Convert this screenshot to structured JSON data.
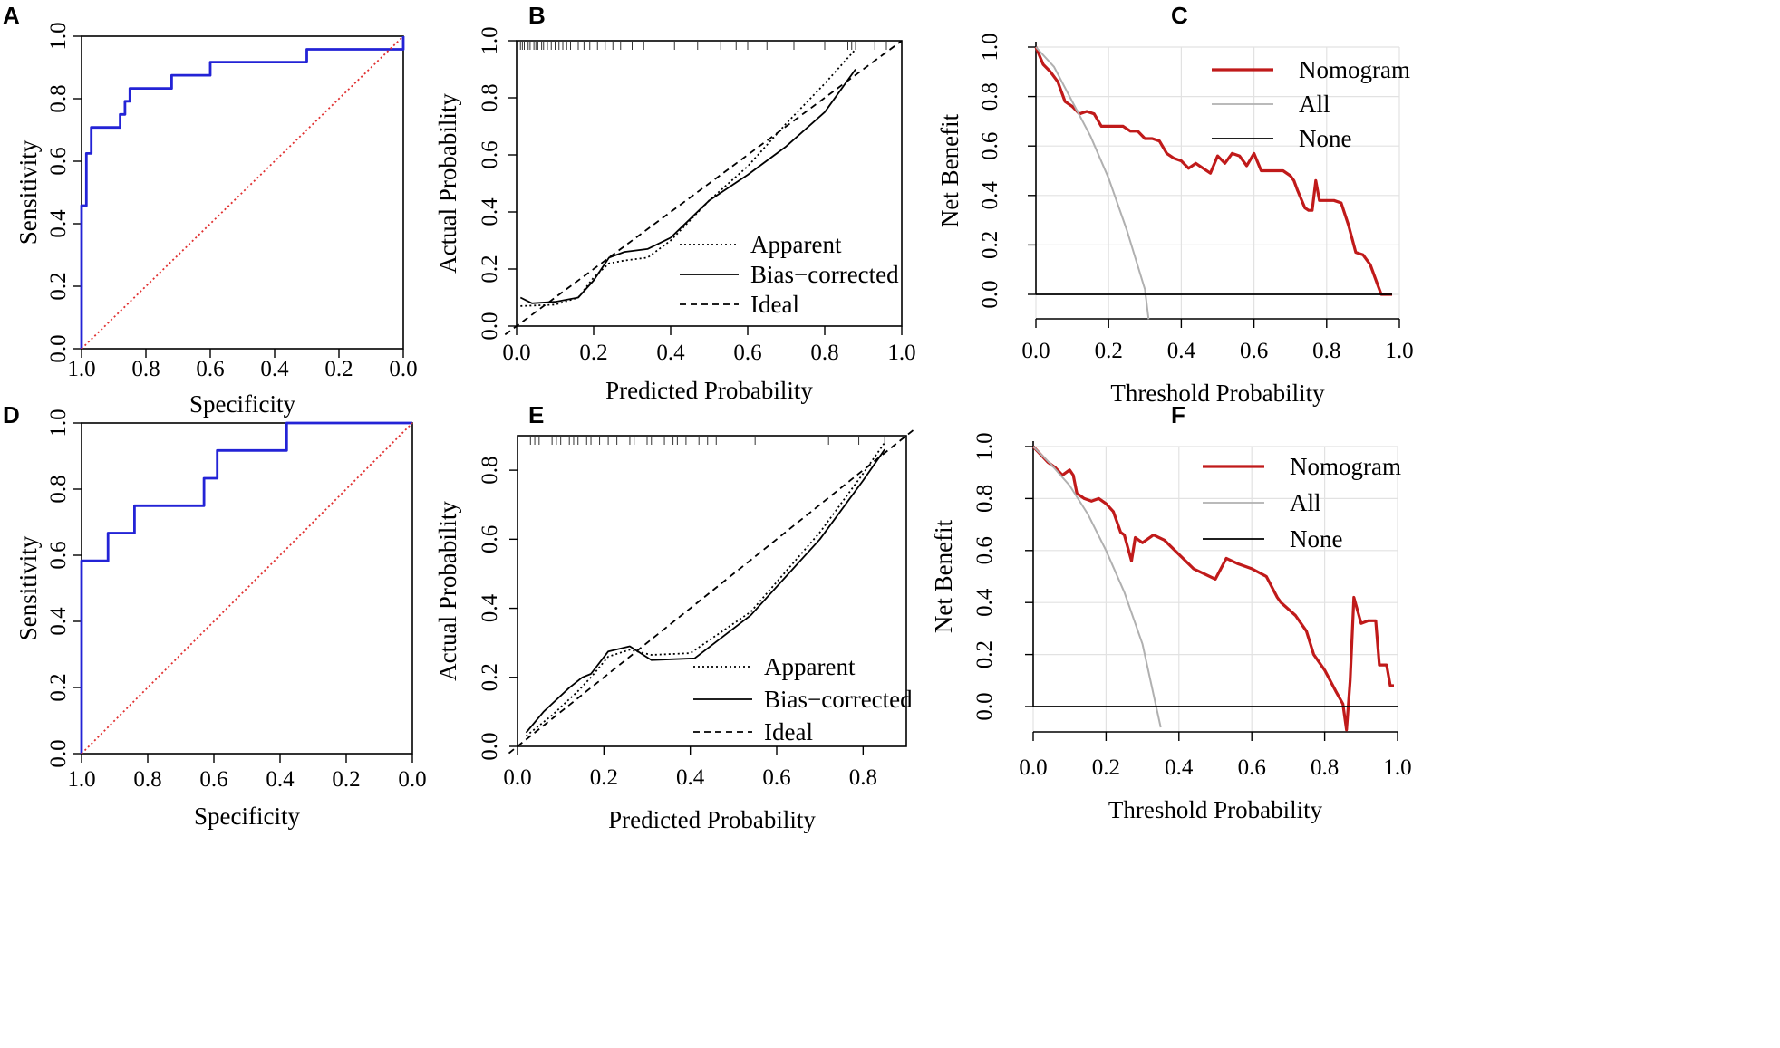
{
  "chart_data": [
    {
      "panel": "A",
      "type": "line",
      "kind": "roc",
      "xlabel": "Specificity",
      "ylabel": "Sensitivity",
      "xlim": [
        1.0,
        0.0
      ],
      "ylim": [
        0.0,
        1.0
      ],
      "xticks": [
        "1.0",
        "0.8",
        "0.6",
        "0.4",
        "0.2",
        "0.0"
      ],
      "yticks": [
        "0.0",
        "0.2",
        "0.4",
        "0.6",
        "0.8",
        "1.0"
      ],
      "series": [
        {
          "name": "ROC",
          "color": "#2323d6",
          "style": "solid",
          "specificity": [
            1.0,
            1.0,
            0.985,
            0.985,
            0.97,
            0.97,
            0.955,
            0.955,
            0.88,
            0.88,
            0.865,
            0.865,
            0.85,
            0.85,
            0.72,
            0.72,
            0.6,
            0.6,
            0.3,
            0.3,
            0.0,
            0.0
          ],
          "sensitivity": [
            0.0,
            0.458,
            0.458,
            0.625,
            0.625,
            0.708,
            0.708,
            0.708,
            0.708,
            0.75,
            0.75,
            0.792,
            0.792,
            0.833,
            0.833,
            0.875,
            0.875,
            0.917,
            0.917,
            0.958,
            0.958,
            1.0
          ]
        },
        {
          "name": "Reference",
          "color": "#e03030",
          "style": "dotted",
          "specificity": [
            1.0,
            0.0
          ],
          "sensitivity": [
            0.0,
            1.0
          ]
        }
      ]
    },
    {
      "panel": "B",
      "type": "line",
      "kind": "calibration",
      "xlabel": "Predicted Probability",
      "ylabel": "Actual Probability",
      "xlim": [
        0.0,
        1.0
      ],
      "ylim": [
        0.0,
        1.0
      ],
      "xticks": [
        "0.0",
        "0.2",
        "0.4",
        "0.6",
        "0.8",
        "1.0"
      ],
      "yticks": [
        "0.0",
        "0.2",
        "0.4",
        "0.6",
        "0.8",
        "1.0"
      ],
      "legend": [
        "Apparent",
        "Bias−corrected",
        "Ideal"
      ],
      "rug": [
        0.01,
        0.015,
        0.02,
        0.03,
        0.035,
        0.045,
        0.05,
        0.055,
        0.065,
        0.07,
        0.08,
        0.09,
        0.1,
        0.11,
        0.12,
        0.13,
        0.14,
        0.16,
        0.175,
        0.19,
        0.21,
        0.23,
        0.25,
        0.27,
        0.3,
        0.33,
        0.41,
        0.47,
        0.53,
        0.57,
        0.6,
        0.65,
        0.72,
        0.8,
        0.86,
        0.87,
        0.88,
        0.93,
        0.96
      ],
      "series": [
        {
          "name": "Apparent",
          "style": "dotted",
          "x": [
            0.01,
            0.1,
            0.16,
            0.2,
            0.24,
            0.28,
            0.34,
            0.4,
            0.5,
            0.6,
            0.7,
            0.8,
            0.88
          ],
          "y": [
            0.07,
            0.075,
            0.1,
            0.17,
            0.22,
            0.23,
            0.24,
            0.3,
            0.44,
            0.56,
            0.71,
            0.85,
            0.97
          ]
        },
        {
          "name": "Bias−corrected",
          "style": "solid",
          "x": [
            0.01,
            0.04,
            0.1,
            0.16,
            0.2,
            0.24,
            0.28,
            0.34,
            0.4,
            0.5,
            0.6,
            0.7,
            0.8,
            0.88
          ],
          "y": [
            0.1,
            0.08,
            0.085,
            0.1,
            0.16,
            0.24,
            0.26,
            0.27,
            0.31,
            0.44,
            0.53,
            0.63,
            0.75,
            0.9
          ]
        },
        {
          "name": "Ideal",
          "style": "dashed",
          "x": [
            -0.03,
            1.0
          ],
          "y": [
            -0.03,
            1.0
          ]
        }
      ]
    },
    {
      "panel": "C",
      "type": "line",
      "kind": "decision-curve",
      "xlabel": "Threshold Probability",
      "ylabel": "Net Benefit",
      "xlim": [
        0.0,
        1.0
      ],
      "ylim": [
        0.0,
        1.0
      ],
      "xticks": [
        "0.0",
        "0.2",
        "0.4",
        "0.6",
        "0.8",
        "1.0"
      ],
      "yticks": [
        "0.0",
        "0.2",
        "0.4",
        "0.6",
        "0.8",
        "1.0"
      ],
      "legend": [
        "Nomogram",
        "All",
        "None"
      ],
      "series": [
        {
          "name": "Nomogram",
          "color": "#c01a1a",
          "x": [
            0.0,
            0.02,
            0.04,
            0.06,
            0.08,
            0.1,
            0.12,
            0.14,
            0.16,
            0.18,
            0.2,
            0.22,
            0.24,
            0.26,
            0.28,
            0.3,
            0.32,
            0.34,
            0.36,
            0.38,
            0.4,
            0.42,
            0.44,
            0.46,
            0.48,
            0.5,
            0.52,
            0.54,
            0.56,
            0.58,
            0.6,
            0.62,
            0.64,
            0.66,
            0.68,
            0.7,
            0.71,
            0.72,
            0.74,
            0.75,
            0.76,
            0.77,
            0.78,
            0.8,
            0.82,
            0.84,
            0.86,
            0.88,
            0.9,
            0.92,
            0.94,
            0.95,
            0.98
          ],
          "y": [
            1.0,
            0.93,
            0.9,
            0.86,
            0.78,
            0.76,
            0.73,
            0.74,
            0.73,
            0.68,
            0.68,
            0.68,
            0.68,
            0.66,
            0.66,
            0.63,
            0.63,
            0.62,
            0.57,
            0.55,
            0.54,
            0.51,
            0.53,
            0.51,
            0.49,
            0.56,
            0.53,
            0.57,
            0.56,
            0.52,
            0.57,
            0.5,
            0.5,
            0.5,
            0.5,
            0.48,
            0.46,
            0.42,
            0.35,
            0.34,
            0.34,
            0.46,
            0.38,
            0.38,
            0.38,
            0.37,
            0.28,
            0.17,
            0.16,
            0.12,
            0.04,
            0.0,
            0.0
          ]
        },
        {
          "name": "All",
          "color": "#b0b0b0",
          "x": [
            0.0,
            0.05,
            0.1,
            0.15,
            0.2,
            0.25,
            0.3,
            0.31
          ],
          "y": [
            1.0,
            0.92,
            0.78,
            0.64,
            0.47,
            0.26,
            0.02,
            -0.1
          ]
        },
        {
          "name": "None",
          "color": "#000000",
          "x": [
            0.0,
            0.98
          ],
          "y": [
            0.0,
            0.0
          ]
        }
      ]
    },
    {
      "panel": "D",
      "type": "line",
      "kind": "roc",
      "xlabel": "Specificity",
      "ylabel": "Sensitivity",
      "xlim": [
        1.0,
        0.0
      ],
      "ylim": [
        0.0,
        1.0
      ],
      "xticks": [
        "1.0",
        "0.8",
        "0.6",
        "0.4",
        "0.2",
        "0.0"
      ],
      "yticks": [
        "0.0",
        "0.2",
        "0.4",
        "0.6",
        "0.8",
        "1.0"
      ],
      "series": [
        {
          "name": "ROC",
          "color": "#2323d6",
          "style": "solid",
          "specificity": [
            1.0,
            1.0,
            0.92,
            0.92,
            0.84,
            0.84,
            0.63,
            0.63,
            0.59,
            0.59,
            0.38,
            0.38,
            0.0
          ],
          "sensitivity": [
            0.0,
            0.583,
            0.583,
            0.667,
            0.667,
            0.75,
            0.75,
            0.833,
            0.833,
            0.917,
            0.917,
            1.0,
            1.0
          ]
        },
        {
          "name": "Reference",
          "color": "#e03030",
          "style": "dotted",
          "specificity": [
            1.0,
            0.0
          ],
          "sensitivity": [
            0.0,
            1.0
          ]
        }
      ]
    },
    {
      "panel": "E",
      "type": "line",
      "kind": "calibration",
      "xlabel": "Predicted Probability",
      "ylabel": "Actual Probability",
      "xlim": [
        0.0,
        0.9
      ],
      "ylim": [
        0.0,
        0.9
      ],
      "xticks": [
        "0.0",
        "0.2",
        "0.4",
        "0.6",
        "0.8"
      ],
      "yticks": [
        "0.0",
        "0.2",
        "0.4",
        "0.6",
        "0.8"
      ],
      "legend": [
        "Apparent",
        "Bias−corrected",
        "Ideal"
      ],
      "rug": [
        0.03,
        0.04,
        0.05,
        0.08,
        0.09,
        0.1,
        0.12,
        0.13,
        0.14,
        0.16,
        0.17,
        0.19,
        0.21,
        0.23,
        0.26,
        0.27,
        0.3,
        0.31,
        0.34,
        0.36,
        0.37,
        0.39,
        0.42,
        0.44,
        0.46,
        0.55,
        0.72,
        0.79,
        0.85
      ],
      "series": [
        {
          "name": "Apparent",
          "style": "dotted",
          "x": [
            0.02,
            0.08,
            0.14,
            0.17,
            0.21,
            0.26,
            0.31,
            0.4,
            0.54,
            0.7,
            0.8,
            0.85
          ],
          "y": [
            0.03,
            0.09,
            0.16,
            0.2,
            0.26,
            0.28,
            0.265,
            0.27,
            0.39,
            0.62,
            0.79,
            0.88
          ]
        },
        {
          "name": "Bias−corrected",
          "style": "solid",
          "x": [
            0.02,
            0.06,
            0.12,
            0.15,
            0.17,
            0.21,
            0.26,
            0.31,
            0.41,
            0.54,
            0.7,
            0.8,
            0.85
          ],
          "y": [
            0.04,
            0.1,
            0.17,
            0.2,
            0.21,
            0.275,
            0.29,
            0.25,
            0.255,
            0.38,
            0.6,
            0.77,
            0.86
          ]
        },
        {
          "name": "Ideal",
          "style": "dashed",
          "x": [
            -0.02,
            0.92
          ],
          "y": [
            -0.02,
            0.92
          ]
        }
      ]
    },
    {
      "panel": "F",
      "type": "line",
      "kind": "decision-curve",
      "xlabel": "Threshold Probability",
      "ylabel": "Net Benefit",
      "xlim": [
        0.0,
        1.0
      ],
      "ylim": [
        0.0,
        1.0
      ],
      "xticks": [
        "0.0",
        "0.2",
        "0.4",
        "0.6",
        "0.8",
        "1.0"
      ],
      "yticks": [
        "0.0",
        "0.2",
        "0.4",
        "0.6",
        "0.8",
        "1.0"
      ],
      "legend": [
        "Nomogram",
        "All",
        "None"
      ],
      "series": [
        {
          "name": "Nomogram",
          "color": "#c01a1a",
          "x": [
            0.0,
            0.04,
            0.06,
            0.08,
            0.1,
            0.11,
            0.12,
            0.14,
            0.16,
            0.18,
            0.2,
            0.22,
            0.24,
            0.25,
            0.27,
            0.28,
            0.3,
            0.33,
            0.36,
            0.44,
            0.5,
            0.53,
            0.56,
            0.6,
            0.64,
            0.67,
            0.68,
            0.72,
            0.75,
            0.77,
            0.8,
            0.83,
            0.85,
            0.86,
            0.87,
            0.88,
            0.9,
            0.92,
            0.94,
            0.95,
            0.97,
            0.98,
            0.99
          ],
          "y": [
            1.0,
            0.94,
            0.92,
            0.89,
            0.91,
            0.89,
            0.82,
            0.8,
            0.79,
            0.8,
            0.78,
            0.75,
            0.67,
            0.66,
            0.56,
            0.65,
            0.63,
            0.66,
            0.64,
            0.53,
            0.49,
            0.57,
            0.55,
            0.53,
            0.5,
            0.42,
            0.4,
            0.35,
            0.29,
            0.2,
            0.14,
            0.06,
            0.01,
            -0.09,
            0.1,
            0.42,
            0.32,
            0.33,
            0.33,
            0.16,
            0.16,
            0.08,
            0.08
          ]
        },
        {
          "name": "All",
          "color": "#b0b0b0",
          "x": [
            0.0,
            0.05,
            0.1,
            0.15,
            0.2,
            0.25,
            0.3,
            0.35
          ],
          "y": [
            1.0,
            0.93,
            0.85,
            0.74,
            0.6,
            0.44,
            0.24,
            -0.08
          ]
        },
        {
          "name": "None",
          "color": "#000000",
          "x": [
            0.0,
            1.0
          ],
          "y": [
            0.0,
            0.0
          ]
        }
      ]
    }
  ]
}
